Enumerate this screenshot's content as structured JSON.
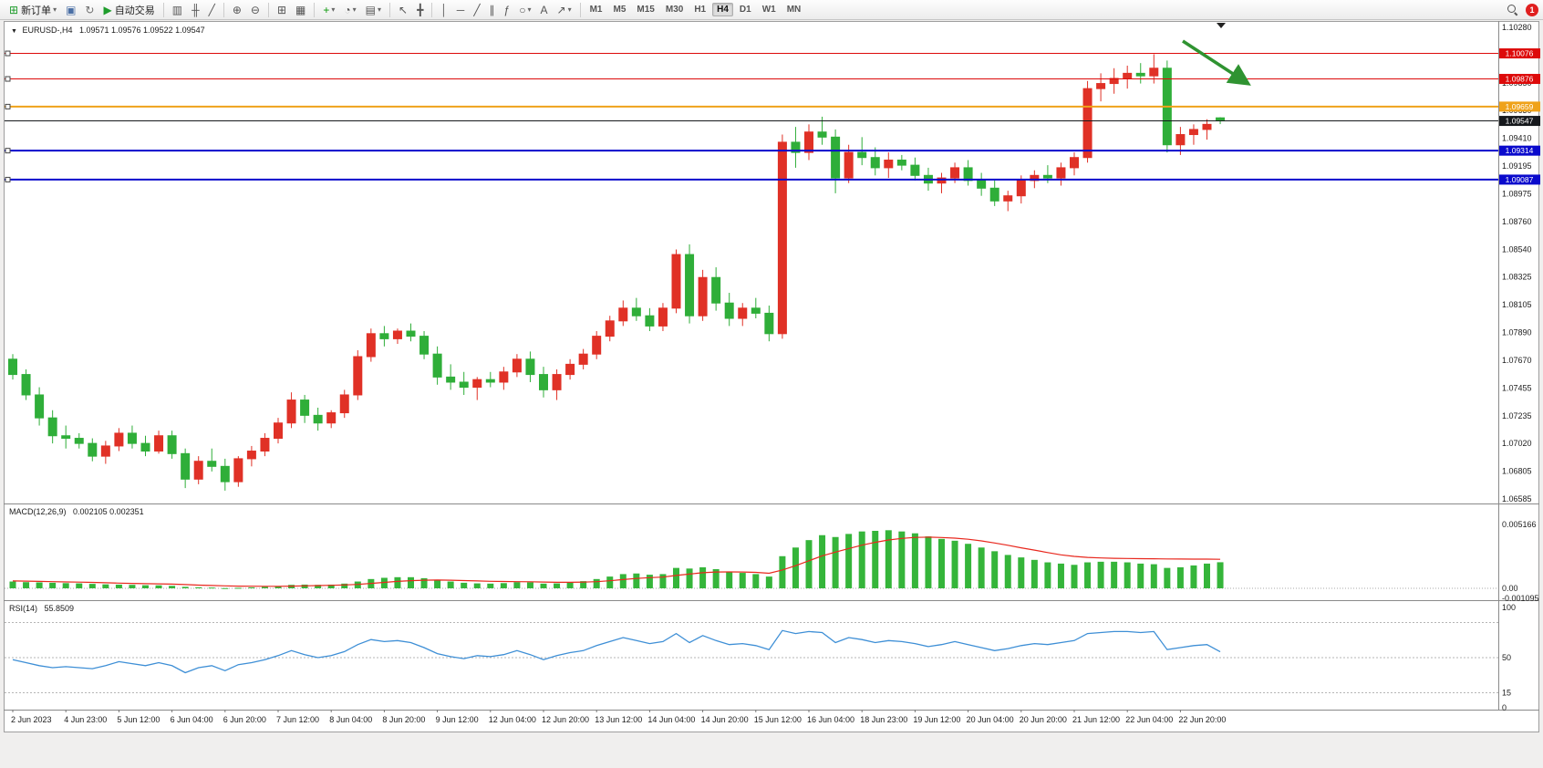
{
  "toolbar": {
    "groups": [
      {
        "name": "trade",
        "items": [
          {
            "name": "new-order",
            "glyph": "⊞",
            "glyph_color": "#1f9d2c",
            "label": "新订单",
            "dropdown": true
          },
          {
            "name": "charts",
            "glyph": "▣",
            "glyph_color": "#4a6fa5"
          },
          {
            "name": "profiles",
            "glyph": "↻",
            "glyph_color": "#707070"
          },
          {
            "name": "autotrade",
            "glyph": "▶",
            "glyph_color": "#1f9d2c",
            "label": "自动交易"
          }
        ]
      },
      {
        "name": "chart-type",
        "items": [
          {
            "name": "bar-chart",
            "glyph": "▥"
          },
          {
            "name": "candlestick-chart",
            "glyph": "╫"
          },
          {
            "name": "line-chart",
            "glyph": "╱"
          }
        ]
      },
      {
        "name": "zoom",
        "items": [
          {
            "name": "zoom-in",
            "glyph": "⊕"
          },
          {
            "name": "zoom-out",
            "glyph": "⊖"
          }
        ]
      },
      {
        "name": "layout",
        "items": [
          {
            "name": "tile-windows",
            "glyph": "⊞"
          },
          {
            "name": "auto-arrange",
            "glyph": "▦"
          }
        ]
      },
      {
        "name": "chart-tools",
        "items": [
          {
            "name": "indicators",
            "glyph": "+",
            "glyph_color": "#0a9a0a",
            "dropdown": true
          },
          {
            "name": "periods",
            "glyph": "◔",
            "dropdown": true
          },
          {
            "name": "templates",
            "glyph": "▤",
            "dropdown": true
          }
        ]
      },
      {
        "name": "cursor-tools",
        "items": [
          {
            "name": "cursor",
            "glyph": "↖"
          },
          {
            "name": "crosshair",
            "glyph": "╋"
          }
        ]
      },
      {
        "name": "draw-tools",
        "items": [
          {
            "name": "vertical-line",
            "glyph": "│"
          },
          {
            "name": "horizontal-line",
            "glyph": "─"
          },
          {
            "name": "trendline",
            "glyph": "╱"
          },
          {
            "name": "channel",
            "glyph": "∥"
          },
          {
            "name": "fibonacci",
            "glyph": "ƒ"
          },
          {
            "name": "shapes",
            "glyph": "○",
            "dropdown": true
          },
          {
            "name": "text",
            "glyph": "A"
          },
          {
            "name": "arrows",
            "glyph": "↗",
            "dropdown": true
          }
        ]
      }
    ],
    "timeframes": {
      "options": [
        "M1",
        "M5",
        "M15",
        "M30",
        "H1",
        "H4",
        "D1",
        "W1",
        "MN"
      ],
      "active": "H4"
    },
    "notification_count": "1"
  },
  "chart": {
    "header": {
      "symbol": "EURUSD-,H4",
      "ohlc": "1.09571 1.09576 1.09522 1.09547"
    },
    "price_axis": {
      "max": 1.1028,
      "min": 1.06585,
      "labels": [
        "1.10280",
        "1.10065",
        "1.09850",
        "1.09630",
        "1.09410",
        "1.09195",
        "1.08975",
        "1.08760",
        "1.08540",
        "1.08325",
        "1.08105",
        "1.07890",
        "1.07670",
        "1.07455",
        "1.07235",
        "1.07020",
        "1.06805",
        "1.06585"
      ]
    },
    "hlines": [
      {
        "name": "resistance-line-upper",
        "price": 1.10076,
        "label": "1.10076",
        "color": "#dd0a0a",
        "width": 1
      },
      {
        "name": "resistance-line-lower",
        "price": 1.09876,
        "label": "1.09876",
        "color": "#dd0a0a",
        "width": 1
      },
      {
        "name": "pivot-line",
        "price": 1.09659,
        "label": "1.09659",
        "color": "#efa21a",
        "width": 2
      },
      {
        "name": "support-line-upper",
        "price": 1.09314,
        "label": "1.09314",
        "color": "#0a0acc",
        "width": 2
      },
      {
        "name": "support-line-lower",
        "price": 1.09087,
        "label": "1.09087",
        "color": "#0a0acc",
        "width": 2
      }
    ],
    "current_price": {
      "value": 1.09547,
      "label": "1.09547",
      "color": "#15181c"
    }
  },
  "chart_data": {
    "type": "candlestick",
    "symbol": "EURUSD",
    "timeframe": "H4",
    "title": "EURUSD-,H4 1.09571 1.09576 1.09522 1.09547",
    "price_range_visible": [
      1.06585,
      1.1028
    ],
    "colors": {
      "bull_up": "#e03126",
      "bear_down": "#2fae39",
      "macd_histogram": "#35b53a",
      "macd_signal": "#e8281e",
      "rsi_line": "#3e8fd6"
    },
    "label_every_n_candles": 4,
    "time_labels": [
      "2 Jun 2023",
      "4 Jun 23:00",
      "5 Jun 12:00",
      "6 Jun 04:00",
      "6 Jun 20:00",
      "7 Jun 12:00",
      "8 Jun 04:00",
      "8 Jun 20:00",
      "9 Jun 12:00",
      "12 Jun 04:00",
      "12 Jun 20:00",
      "13 Jun 12:00",
      "14 Jun 04:00",
      "14 Jun 20:00",
      "15 Jun 12:00",
      "16 Jun 04:00",
      "18 Jun 23:00",
      "19 Jun 12:00",
      "20 Jun 04:00",
      "20 Jun 20:00",
      "21 Jun 12:00",
      "22 Jun 04:00",
      "22 Jun 20:00"
    ],
    "ohlc": [
      [
        1.0768,
        1.0772,
        1.0752,
        1.0756
      ],
      [
        1.0756,
        1.076,
        1.0736,
        1.074
      ],
      [
        1.074,
        1.0746,
        1.0716,
        1.0722
      ],
      [
        1.0722,
        1.0728,
        1.0702,
        1.0708
      ],
      [
        1.0708,
        1.0716,
        1.0698,
        1.0706
      ],
      [
        1.0706,
        1.071,
        1.0698,
        1.0702
      ],
      [
        1.0702,
        1.0706,
        1.0688,
        1.0692
      ],
      [
        1.0692,
        1.0704,
        1.0686,
        1.07
      ],
      [
        1.07,
        1.0714,
        1.0696,
        1.071
      ],
      [
        1.071,
        1.0716,
        1.0698,
        1.0702
      ],
      [
        1.0702,
        1.0708,
        1.0692,
        1.0696
      ],
      [
        1.0696,
        1.0712,
        1.0694,
        1.0708
      ],
      [
        1.0708,
        1.0712,
        1.069,
        1.0694
      ],
      [
        1.0694,
        1.0698,
        1.0667,
        1.0674
      ],
      [
        1.0674,
        1.0692,
        1.067,
        1.0688
      ],
      [
        1.0688,
        1.0698,
        1.068,
        1.0684
      ],
      [
        1.0684,
        1.069,
        1.0665,
        1.0672
      ],
      [
        1.0672,
        1.0692,
        1.0668,
        1.069
      ],
      [
        1.069,
        1.07,
        1.0684,
        1.0696
      ],
      [
        1.0696,
        1.071,
        1.0692,
        1.0706
      ],
      [
        1.0706,
        1.0722,
        1.0702,
        1.0718
      ],
      [
        1.0718,
        1.0742,
        1.0714,
        1.0736
      ],
      [
        1.0736,
        1.074,
        1.0718,
        1.0724
      ],
      [
        1.0724,
        1.073,
        1.0712,
        1.0718
      ],
      [
        1.0718,
        1.0728,
        1.0714,
        1.0726
      ],
      [
        1.0726,
        1.0744,
        1.0722,
        1.074
      ],
      [
        1.074,
        1.0775,
        1.0736,
        1.077
      ],
      [
        1.077,
        1.0792,
        1.0766,
        1.0788
      ],
      [
        1.0788,
        1.0794,
        1.0778,
        1.0784
      ],
      [
        1.0784,
        1.0792,
        1.078,
        1.079
      ],
      [
        1.079,
        1.0796,
        1.0782,
        1.0786
      ],
      [
        1.0786,
        1.079,
        1.0768,
        1.0772
      ],
      [
        1.0772,
        1.0778,
        1.0748,
        1.0754
      ],
      [
        1.0754,
        1.0764,
        1.0744,
        1.075
      ],
      [
        1.075,
        1.0758,
        1.074,
        1.0746
      ],
      [
        1.0746,
        1.0754,
        1.0736,
        1.0752
      ],
      [
        1.0752,
        1.0758,
        1.0746,
        1.075
      ],
      [
        1.075,
        1.0762,
        1.0744,
        1.0758
      ],
      [
        1.0758,
        1.0772,
        1.0754,
        1.0768
      ],
      [
        1.0768,
        1.0774,
        1.075,
        1.0756
      ],
      [
        1.0756,
        1.0762,
        1.0738,
        1.0744
      ],
      [
        1.0744,
        1.076,
        1.0736,
        1.0756
      ],
      [
        1.0756,
        1.0768,
        1.0752,
        1.0764
      ],
      [
        1.0764,
        1.0776,
        1.076,
        1.0772
      ],
      [
        1.0772,
        1.079,
        1.0768,
        1.0786
      ],
      [
        1.0786,
        1.0802,
        1.0782,
        1.0798
      ],
      [
        1.0798,
        1.0814,
        1.0794,
        1.0808
      ],
      [
        1.0808,
        1.0816,
        1.0798,
        1.0802
      ],
      [
        1.0802,
        1.0808,
        1.079,
        1.0794
      ],
      [
        1.0794,
        1.0812,
        1.079,
        1.0808
      ],
      [
        1.0808,
        1.0854,
        1.0804,
        1.085
      ],
      [
        1.085,
        1.0858,
        1.0796,
        1.0802
      ],
      [
        1.0802,
        1.0838,
        1.0798,
        1.0832
      ],
      [
        1.0832,
        1.084,
        1.0806,
        1.0812
      ],
      [
        1.0812,
        1.082,
        1.0794,
        1.08
      ],
      [
        1.08,
        1.0812,
        1.0794,
        1.0808
      ],
      [
        1.0808,
        1.0816,
        1.08,
        1.0804
      ],
      [
        1.0804,
        1.081,
        1.0782,
        1.0788
      ],
      [
        1.0788,
        1.0944,
        1.0784,
        1.0938
      ],
      [
        1.0938,
        1.095,
        1.0918,
        1.093
      ],
      [
        1.093,
        1.0952,
        1.0924,
        1.0946
      ],
      [
        1.0946,
        1.0958,
        1.0936,
        1.0942
      ],
      [
        1.0942,
        1.0948,
        1.0898,
        1.091
      ],
      [
        1.091,
        1.0936,
        1.0906,
        1.093
      ],
      [
        1.093,
        1.0942,
        1.092,
        1.0926
      ],
      [
        1.0926,
        1.0934,
        1.0912,
        1.0918
      ],
      [
        1.0918,
        1.093,
        1.091,
        1.0924
      ],
      [
        1.0924,
        1.0928,
        1.0916,
        1.092
      ],
      [
        1.092,
        1.0926,
        1.0908,
        1.0912
      ],
      [
        1.0912,
        1.0918,
        1.09,
        1.0906
      ],
      [
        1.0906,
        1.0914,
        1.0898,
        1.091
      ],
      [
        1.091,
        1.0922,
        1.0906,
        1.0918
      ],
      [
        1.0918,
        1.0924,
        1.0904,
        1.0908
      ],
      [
        1.0908,
        1.0914,
        1.0896,
        1.0902
      ],
      [
        1.0902,
        1.0908,
        1.0888,
        1.0892
      ],
      [
        1.0892,
        1.09,
        1.0884,
        1.0896
      ],
      [
        1.0896,
        1.0912,
        1.089,
        1.0908
      ],
      [
        1.0908,
        1.0916,
        1.0902,
        1.0912
      ],
      [
        1.0912,
        1.092,
        1.0906,
        1.091
      ],
      [
        1.091,
        1.0922,
        1.0904,
        1.0918
      ],
      [
        1.0918,
        1.093,
        1.0912,
        1.0926
      ],
      [
        1.0926,
        1.0986,
        1.0922,
        1.098
      ],
      [
        1.098,
        1.0992,
        1.097,
        1.0984
      ],
      [
        1.0984,
        1.0996,
        1.0976,
        1.0988
      ],
      [
        1.0988,
        1.0998,
        1.098,
        1.0992
      ],
      [
        1.0992,
        1.1,
        1.0984,
        1.099
      ],
      [
        1.099,
        1.1007,
        1.0984,
        1.0996
      ],
      [
        1.0996,
        1.1002,
        1.093,
        1.0936
      ],
      [
        1.0936,
        1.095,
        1.0928,
        1.0944
      ],
      [
        1.0944,
        1.0952,
        1.0936,
        1.0948
      ],
      [
        1.0948,
        1.0956,
        1.094,
        1.0952
      ],
      [
        1.09571,
        1.09576,
        1.09522,
        1.09547
      ]
    ],
    "indicators": {
      "macd": {
        "label": "MACD(12,26,9)",
        "values_text": "0.002105 0.002351",
        "axis": {
          "max": 0.005166,
          "zero": 0,
          "min": -0.001095
        },
        "axis_labels": [
          [
            "0.005166",
            0.005166
          ],
          [
            "0.00",
            0
          ],
          [
            "-0.001095",
            -0.001095
          ]
        ],
        "histogram": [
          0.00055,
          0.0005,
          0.00048,
          0.00045,
          0.00042,
          0.0004,
          0.00036,
          0.00032,
          0.0003,
          0.00028,
          0.00025,
          0.00024,
          0.0002,
          0.00012,
          8e-05,
          6e-05,
          2e-05,
          4e-05,
          8e-05,
          0.00012,
          0.00018,
          0.00028,
          0.0003,
          0.00028,
          0.0003,
          0.00038,
          0.00055,
          0.00075,
          0.00085,
          0.0009,
          0.0009,
          0.00082,
          0.00068,
          0.00055,
          0.00045,
          0.0004,
          0.00038,
          0.00042,
          0.0005,
          0.00048,
          0.00038,
          0.0004,
          0.00048,
          0.00058,
          0.00075,
          0.00095,
          0.00115,
          0.0012,
          0.0011,
          0.00115,
          0.00165,
          0.0016,
          0.0017,
          0.00155,
          0.00135,
          0.00125,
          0.00115,
          0.00095,
          0.0026,
          0.0033,
          0.0039,
          0.0043,
          0.00415,
          0.0044,
          0.0046,
          0.00465,
          0.0047,
          0.0046,
          0.00445,
          0.0042,
          0.004,
          0.00385,
          0.0036,
          0.0033,
          0.003,
          0.0027,
          0.0025,
          0.0023,
          0.0021,
          0.002,
          0.0019,
          0.0021,
          0.00215,
          0.00215,
          0.0021,
          0.002,
          0.00195,
          0.00165,
          0.0017,
          0.00185,
          0.002,
          0.00211
        ],
        "signal": [
          0.0006,
          0.00058,
          0.00056,
          0.00054,
          0.00052,
          0.0005,
          0.00048,
          0.00045,
          0.00042,
          0.0004,
          0.00038,
          0.00036,
          0.00034,
          0.0003,
          0.00026,
          0.00023,
          0.0002,
          0.00018,
          0.00017,
          0.00016,
          0.00016,
          0.00018,
          0.0002,
          0.00022,
          0.00024,
          0.00027,
          0.00032,
          0.0004,
          0.00048,
          0.00056,
          0.00062,
          0.00066,
          0.00067,
          0.00066,
          0.00063,
          0.0006,
          0.00057,
          0.00055,
          0.00054,
          0.00053,
          0.00051,
          0.00049,
          0.00049,
          0.0005,
          0.00054,
          0.00061,
          0.00071,
          0.0008,
          0.00086,
          0.00091,
          0.00104,
          0.00115,
          0.00126,
          0.00132,
          0.00133,
          0.00132,
          0.00129,
          0.00122,
          0.00148,
          0.00183,
          0.00223,
          0.00263,
          0.00293,
          0.00322,
          0.00349,
          0.00372,
          0.00391,
          0.00404,
          0.00412,
          0.00414,
          0.00411,
          0.00406,
          0.00397,
          0.00384,
          0.00367,
          0.00348,
          0.00328,
          0.00309,
          0.00289,
          0.00271,
          0.00258,
          0.0025,
          0.00246,
          0.00243,
          0.00241,
          0.0024,
          0.00239,
          0.00238,
          0.00237,
          0.00236,
          0.00236,
          0.00235
        ]
      },
      "rsi": {
        "label": "RSI(14)",
        "value_text": "55.8509",
        "range": [
          0,
          100
        ],
        "levels": [
          85,
          50,
          15
        ],
        "axis_labels": [
          [
            "100",
            100
          ],
          [
            "50",
            50
          ],
          [
            "15",
            15
          ],
          [
            "0",
            0
          ]
        ],
        "values": [
          48,
          45,
          42,
          40,
          41,
          40,
          39,
          42,
          46,
          44,
          42,
          45,
          42,
          35,
          40,
          42,
          37,
          43,
          45,
          48,
          52,
          57,
          53,
          50,
          52,
          56,
          63,
          68,
          66,
          67,
          65,
          60,
          54,
          51,
          49,
          52,
          51,
          53,
          57,
          53,
          48,
          52,
          55,
          57,
          62,
          66,
          70,
          67,
          64,
          66,
          74,
          65,
          72,
          67,
          63,
          64,
          62,
          58,
          77,
          74,
          76,
          75,
          65,
          70,
          68,
          65,
          67,
          66,
          64,
          61,
          63,
          66,
          63,
          60,
          57,
          59,
          62,
          64,
          63,
          65,
          67,
          74,
          75,
          76,
          76,
          75,
          76,
          58,
          60,
          62,
          63,
          55.85
        ]
      }
    },
    "annotations": [
      {
        "type": "arrow",
        "direction": "down-right",
        "color": "#2f9331"
      }
    ]
  }
}
